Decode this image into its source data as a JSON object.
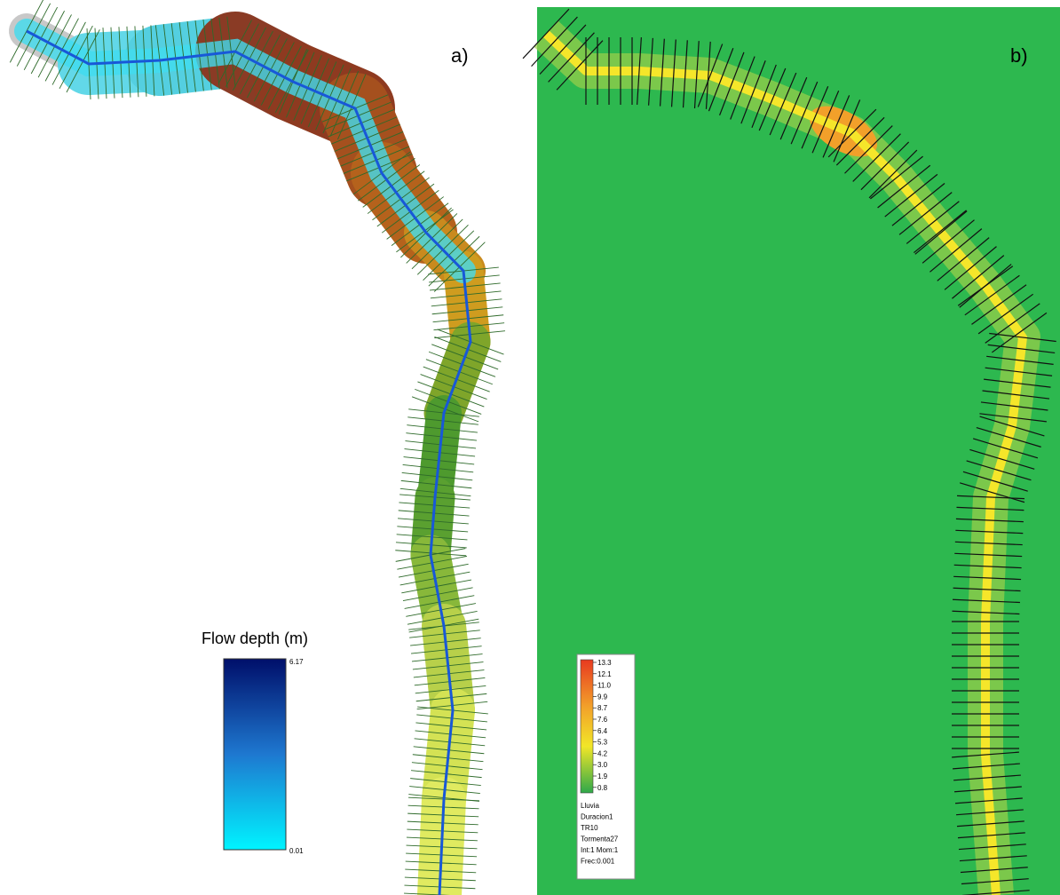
{
  "panel_a": {
    "label": "a)",
    "legend": {
      "title": "Flow depth (m)",
      "max_label": "6.17",
      "min_label": "0.01"
    }
  },
  "panel_b": {
    "label": "b)",
    "legend": {
      "ticks": [
        "13.3",
        "12.1",
        "11.0",
        "9.9",
        "8.7",
        "7.6",
        "6.4",
        "5.3",
        "4.2",
        "3.0",
        "1.9",
        "0.8"
      ],
      "notes": [
        "Lluvia",
        "Duracion1",
        "TR10",
        "Tormenta27",
        "Int:1 Mom:1",
        "Frec:0.001"
      ]
    }
  }
}
